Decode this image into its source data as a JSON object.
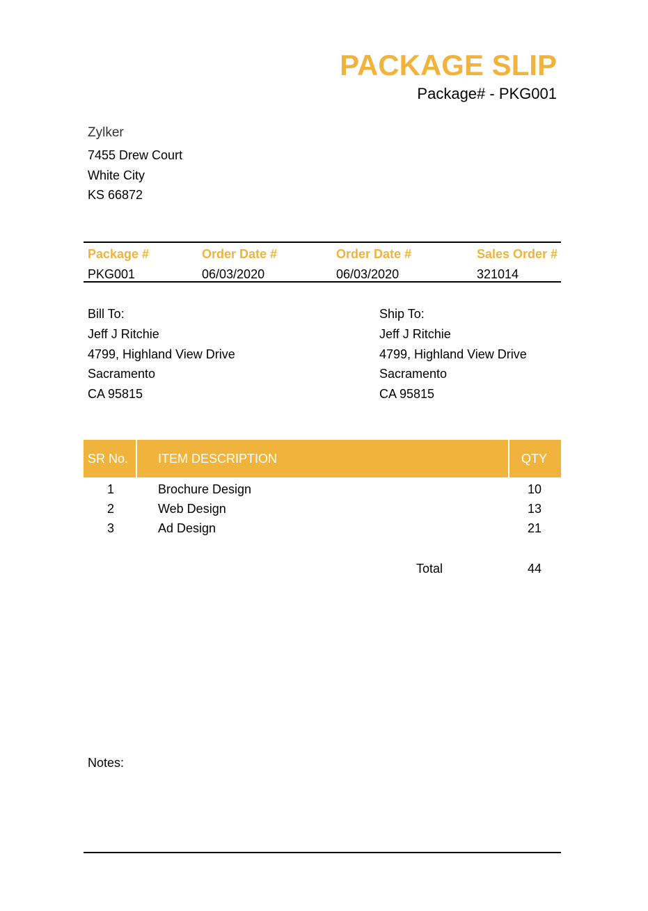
{
  "header": {
    "title": "PACKAGE SLIP",
    "package_number": "Package# - PKG001"
  },
  "company": {
    "name": "Zylker",
    "address": [
      "7455 Drew Court",
      "White City",
      "KS 66872"
    ]
  },
  "meta": {
    "headers": [
      "Package #",
      "Order Date #",
      "Order Date #",
      "Sales Order #"
    ],
    "values": [
      "PKG001",
      "06/03/2020",
      "06/03/2020",
      "321014"
    ]
  },
  "bill_to": {
    "label": "Bill To:",
    "lines": [
      "Jeff J Ritchie",
      "4799, Highland View Drive",
      "Sacramento",
      "CA 95815"
    ]
  },
  "ship_to": {
    "label": "Ship To:",
    "lines": [
      "Jeff J Ritchie",
      "4799, Highland View Drive",
      "Sacramento",
      "CA 95815"
    ]
  },
  "items": {
    "columns": [
      "SR No.",
      "ITEM DESCRIPTION",
      "QTY"
    ],
    "rows": [
      {
        "sr": "1",
        "description": "Brochure Design",
        "qty": "10"
      },
      {
        "sr": "2",
        "description": "Web Design",
        "qty": "13"
      },
      {
        "sr": "3",
        "description": "Ad Design",
        "qty": "21"
      }
    ],
    "total_label": "Total",
    "total_value": "44"
  },
  "notes": {
    "label": "Notes:"
  },
  "colors": {
    "accent": "#F0B43C"
  }
}
